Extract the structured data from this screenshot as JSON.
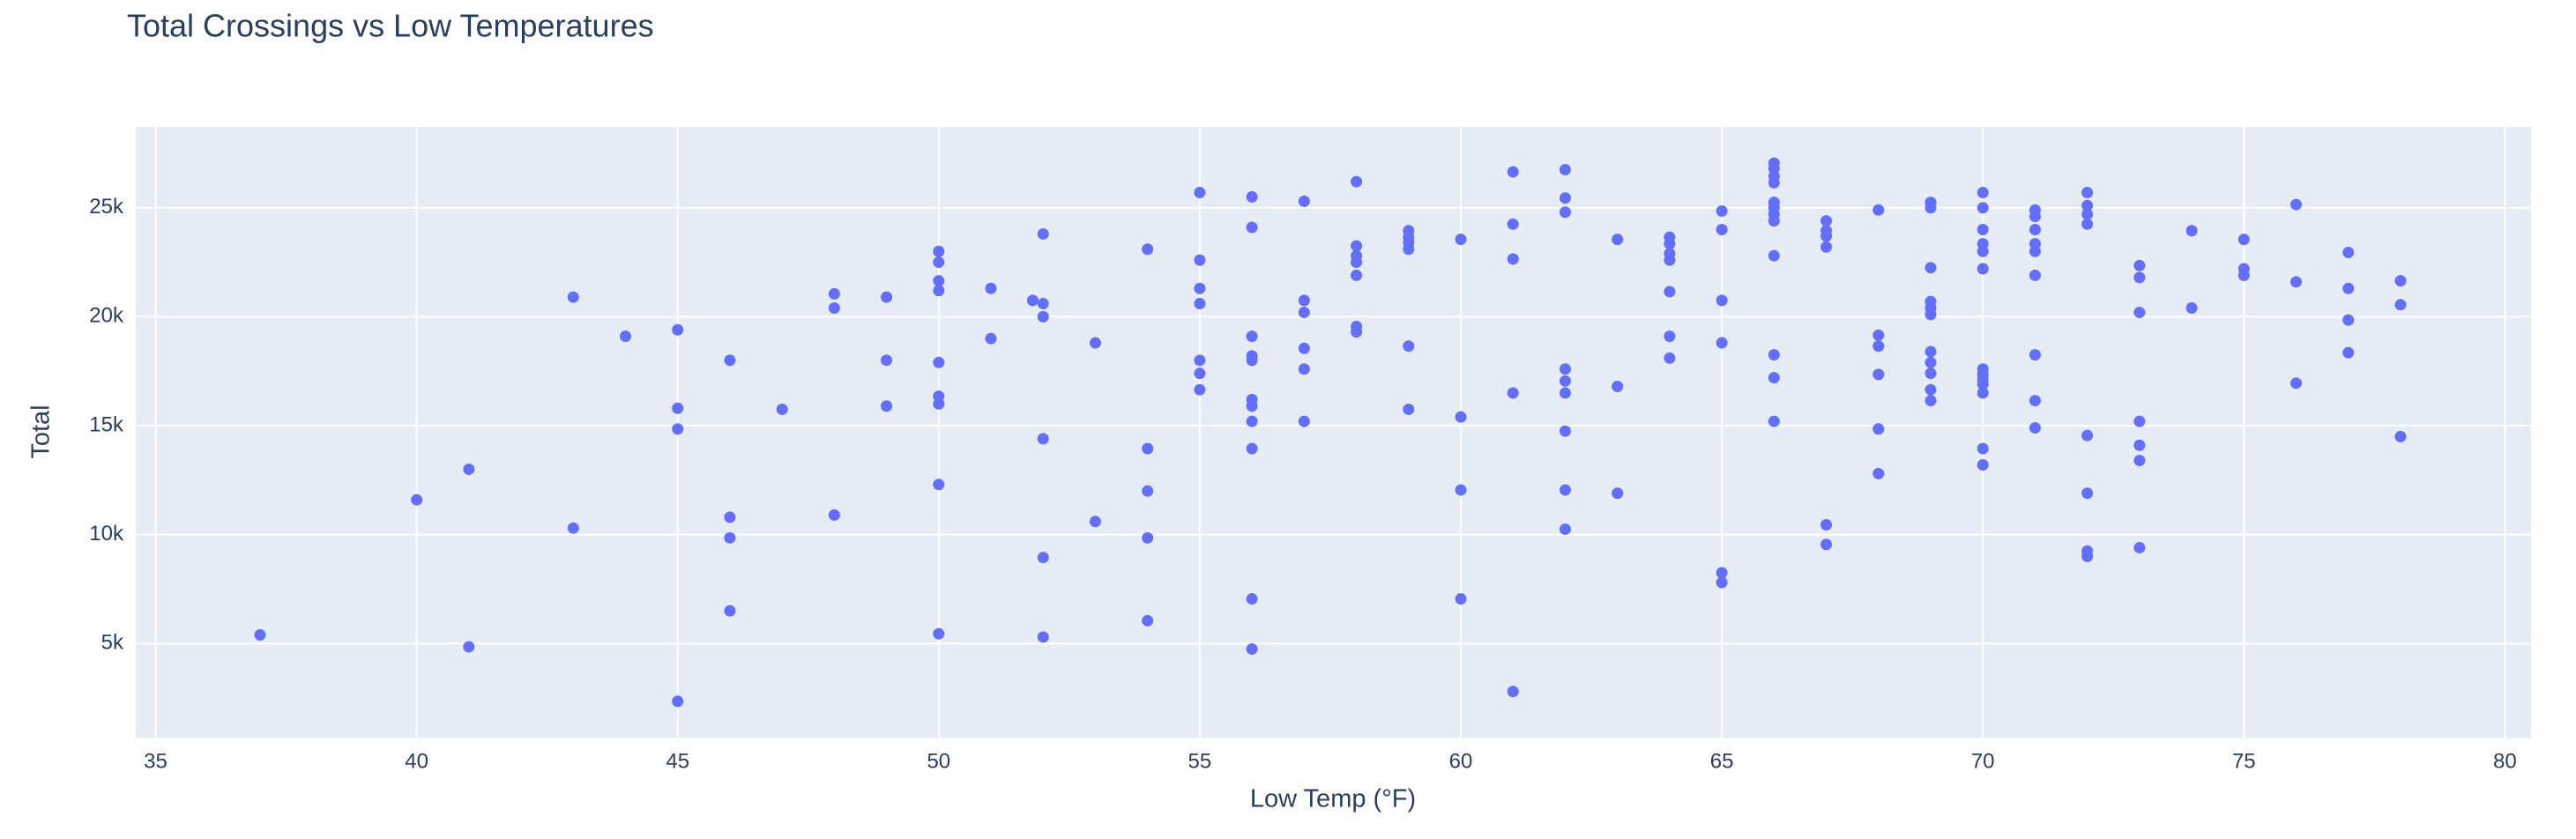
{
  "chart_data": {
    "type": "scatter",
    "title": "Total Crossings vs Low Temperatures",
    "x_label": "Low Temp (°F)",
    "y_label": "Total",
    "color": "#636efa",
    "grid": true,
    "xlim": [
      34.62,
      80.5
    ],
    "ylim": [
      682,
      28712
    ],
    "xticks": [
      35,
      40,
      45,
      50,
      55,
      60,
      65,
      70,
      75,
      80
    ],
    "yticks": [
      {
        "value": 5000,
        "label": "5k"
      },
      {
        "value": 10000,
        "label": "10k"
      },
      {
        "value": 15000,
        "label": "15k"
      },
      {
        "value": 20000,
        "label": "20k"
      },
      {
        "value": 25000,
        "label": "25k"
      }
    ],
    "x": [
      37,
      40,
      41,
      41,
      43,
      43,
      44,
      45,
      45,
      45,
      45,
      46,
      46,
      46,
      46,
      47,
      48,
      48,
      48,
      49,
      49,
      49,
      50,
      50,
      50,
      50,
      50,
      50,
      50,
      50,
      50,
      51,
      51,
      51.8,
      52,
      52,
      52,
      52,
      52,
      52,
      53,
      53,
      54,
      54,
      54,
      54,
      54,
      55,
      55,
      55,
      55,
      55,
      55,
      55,
      56,
      56,
      56,
      56,
      56,
      56,
      56,
      56,
      56,
      56,
      56,
      57,
      57,
      57,
      57,
      57,
      57,
      58,
      58,
      58,
      58,
      58,
      58,
      58,
      59,
      59,
      59,
      59,
      59,
      59,
      60,
      60,
      60,
      60,
      61,
      61,
      61,
      61,
      61,
      62,
      62,
      62,
      62,
      62,
      62,
      62,
      62,
      62,
      63,
      63,
      63,
      64,
      64,
      64,
      64,
      64,
      64,
      64,
      65,
      65,
      65,
      65,
      65,
      65,
      66,
      66,
      66,
      66,
      66,
      66,
      66,
      66,
      66,
      66,
      66,
      66,
      67,
      67,
      67,
      67,
      67,
      67,
      68,
      68,
      68,
      68,
      68,
      68,
      69,
      69,
      69,
      69,
      69,
      69,
      69,
      69,
      69,
      69,
      69,
      70,
      70,
      70,
      70,
      70,
      70,
      70,
      70,
      70,
      70,
      70,
      70,
      70,
      71,
      71,
      71,
      71,
      71,
      71,
      71,
      71,
      71,
      72,
      72,
      72,
      72,
      72,
      72,
      72,
      72,
      73,
      73,
      73,
      73,
      73,
      73,
      73,
      74,
      74,
      75,
      75,
      75,
      76,
      76,
      76,
      77,
      77,
      77,
      77,
      78,
      78,
      78
    ],
    "values": [
      5400,
      11600,
      13000,
      4850,
      20900,
      10300,
      19100,
      19400,
      15800,
      14850,
      2350,
      18000,
      10800,
      9850,
      6500,
      15750,
      21050,
      20400,
      10900,
      20900,
      18000,
      15900,
      23000,
      22500,
      21650,
      21200,
      17900,
      16350,
      16000,
      12300,
      5450,
      21300,
      19000,
      20750,
      23800,
      20600,
      20000,
      14400,
      8950,
      5300,
      18800,
      10600,
      23100,
      13950,
      12000,
      9850,
      6050,
      25700,
      22600,
      21300,
      20600,
      18000,
      17400,
      16650,
      25500,
      24100,
      19100,
      18200,
      18000,
      16200,
      15900,
      15200,
      13950,
      7050,
      4750,
      25300,
      20750,
      20200,
      18550,
      17600,
      15200,
      26200,
      23250,
      22800,
      22500,
      21900,
      19550,
      19300,
      23950,
      23650,
      23400,
      23100,
      18650,
      15750,
      23550,
      15400,
      12050,
      7050,
      26650,
      24250,
      22650,
      16500,
      2800,
      26750,
      25450,
      24800,
      17600,
      17050,
      16500,
      14750,
      12050,
      10250,
      23550,
      16800,
      11900,
      23650,
      23350,
      22900,
      22600,
      21150,
      19100,
      18100,
      24850,
      24000,
      20750,
      18800,
      8250,
      7800,
      27050,
      26800,
      26450,
      26150,
      25250,
      25000,
      24700,
      24400,
      22800,
      18250,
      17200,
      15200,
      24400,
      23950,
      23700,
      23200,
      10450,
      9550,
      24900,
      19150,
      18650,
      17350,
      14850,
      12800,
      25250,
      25000,
      22250,
      20700,
      20400,
      20100,
      18400,
      17900,
      17400,
      16650,
      16150,
      25700,
      25000,
      24000,
      23350,
      23000,
      22200,
      17600,
      17350,
      17100,
      16900,
      16500,
      13950,
      13200,
      24900,
      24600,
      24000,
      23350,
      23000,
      21900,
      18250,
      16150,
      14900,
      25700,
      25100,
      24700,
      24250,
      14550,
      11900,
      9250,
      9000,
      22350,
      21800,
      20200,
      15200,
      14100,
      13400,
      9400,
      23950,
      20400,
      23550,
      22200,
      21900,
      25150,
      21600,
      16950,
      22950,
      21300,
      19850,
      18350,
      21650,
      20550,
      14500
    ]
  }
}
